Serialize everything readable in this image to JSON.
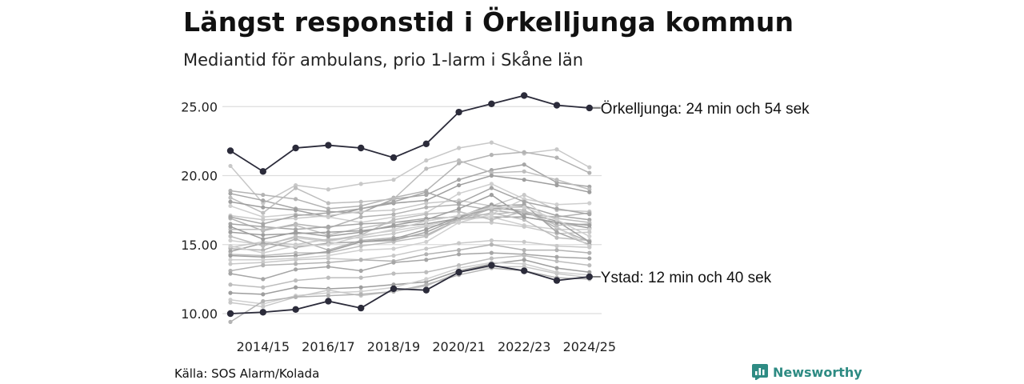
{
  "title": "Längst responstid i Örkelljunga kommun",
  "subtitle": "Mediantid för ambulans, prio 1-larm i Skåne län",
  "source": "Källa: SOS Alarm/Kolada",
  "brand": "Newsworthy",
  "chart_data": {
    "type": "line",
    "title": "Längst responstid i Örkelljunga kommun",
    "subtitle": "Mediantid för ambulans, prio 1-larm i Skåne län",
    "xlabel": "",
    "ylabel": "",
    "x": [
      "2013/14",
      "2014/15",
      "2015/16",
      "2016/17",
      "2017/18",
      "2018/19",
      "2019/20",
      "2020/21",
      "2021/22",
      "2022/23",
      "2023/24",
      "2024/25"
    ],
    "x_tick_labels": [
      "2014/15",
      "2016/17",
      "2018/19",
      "2020/21",
      "2022/23",
      "2024/25"
    ],
    "y_tick_labels": [
      "10.00",
      "15.00",
      "20.00",
      "25.00"
    ],
    "ylim": [
      9.5,
      26.2
    ],
    "grid": true,
    "highlight_color": "#2b2b3a",
    "background_series": [
      {
        "values": [
          20.7,
          18.0,
          19.3,
          19.0,
          19.4,
          19.7,
          21.1,
          22.0,
          22.4,
          21.6,
          21.9,
          20.6
        ]
      },
      {
        "values": [
          18.9,
          18.6,
          18.3,
          17.6,
          17.8,
          18.4,
          18.9,
          20.9,
          21.5,
          21.7,
          21.3,
          20.2
        ]
      },
      {
        "values": [
          18.7,
          18.2,
          17.6,
          17.4,
          17.3,
          18.3,
          18.6,
          19.7,
          20.4,
          20.8,
          19.5,
          19.2
        ]
      },
      {
        "values": [
          18.4,
          17.3,
          19.1,
          18.0,
          18.1,
          18.3,
          20.5,
          21.1,
          20.2,
          20.3,
          19.7,
          19.0
        ]
      },
      {
        "values": [
          18.1,
          17.7,
          17.5,
          17.0,
          17.6,
          18.0,
          18.2,
          19.3,
          20.0,
          19.7,
          19.3,
          18.8
        ]
      },
      {
        "values": [
          17.8,
          17.0,
          17.2,
          17.0,
          16.6,
          17.0,
          17.3,
          18.7,
          19.4,
          18.3,
          17.9,
          18.0
        ]
      },
      {
        "values": [
          17.1,
          16.8,
          16.9,
          17.1,
          17.4,
          17.5,
          18.0,
          18.2,
          17.8,
          18.6,
          17.5,
          17.4
        ]
      },
      {
        "values": [
          16.9,
          16.0,
          16.5,
          16.2,
          17.0,
          17.2,
          17.7,
          17.9,
          17.5,
          17.2,
          17.0,
          17.3
        ]
      },
      {
        "values": [
          16.5,
          16.3,
          16.1,
          16.3,
          16.5,
          16.6,
          16.9,
          17.0,
          17.6,
          17.8,
          17.1,
          16.8
        ]
      },
      {
        "values": [
          16.1,
          16.1,
          16.4,
          15.7,
          16.2,
          16.6,
          16.7,
          17.1,
          17.2,
          17.4,
          16.9,
          16.6
        ]
      },
      {
        "values": [
          15.9,
          15.7,
          15.8,
          15.9,
          16.0,
          16.3,
          16.5,
          16.9,
          17.0,
          17.0,
          16.6,
          16.2
        ]
      },
      {
        "values": [
          15.3,
          15.0,
          15.5,
          15.2,
          15.7,
          16.0,
          16.4,
          16.8,
          17.0,
          16.4,
          16.1,
          16.1
        ]
      },
      {
        "values": [
          14.8,
          15.2,
          15.0,
          15.4,
          15.5,
          15.8,
          16.3,
          16.6,
          16.6,
          16.3,
          15.8,
          15.9
        ]
      },
      {
        "values": [
          14.7,
          14.6,
          15.4,
          14.6,
          15.3,
          15.5,
          15.7,
          16.8,
          17.6,
          17.5,
          16.2,
          15.2
        ]
      },
      {
        "values": [
          14.5,
          15.1,
          14.8,
          15.1,
          15.2,
          15.3,
          15.9,
          16.9,
          17.8,
          17.9,
          15.9,
          15.0
        ]
      },
      {
        "values": [
          14.3,
          14.2,
          14.4,
          14.4,
          14.9,
          15.2,
          15.6,
          16.8,
          17.3,
          16.8,
          15.5,
          15.3
        ]
      },
      {
        "values": [
          14.2,
          14.1,
          14.2,
          14.5,
          15.2,
          15.4,
          16.1,
          17.0,
          17.9,
          17.3,
          16.7,
          15.2
        ]
      },
      {
        "values": [
          13.9,
          13.9,
          14.0,
          14.2,
          14.6,
          14.7,
          15.2,
          16.6,
          17.2,
          18.3,
          16.3,
          14.9
        ]
      },
      {
        "values": [
          13.6,
          13.7,
          13.9,
          14.0,
          13.9,
          14.2,
          14.7,
          15.1,
          15.3,
          15.2,
          14.9,
          14.8
        ]
      },
      {
        "values": [
          13.1,
          13.5,
          13.6,
          13.7,
          13.9,
          13.8,
          14.3,
          14.6,
          15.0,
          14.6,
          14.6,
          14.4
        ]
      },
      {
        "values": [
          12.9,
          12.5,
          13.2,
          13.4,
          13.1,
          13.7,
          13.9,
          14.3,
          14.4,
          14.3,
          14.1,
          14.0
        ]
      },
      {
        "values": [
          12.1,
          11.9,
          12.4,
          12.6,
          12.6,
          12.9,
          13.0,
          13.5,
          14.0,
          14.2,
          13.8,
          13.5
        ]
      },
      {
        "values": [
          11.5,
          11.4,
          11.9,
          11.8,
          11.9,
          12.1,
          12.3,
          13.1,
          13.6,
          13.9,
          13.3,
          13.0
        ]
      },
      {
        "values": [
          11.0,
          10.7,
          11.3,
          11.5,
          11.6,
          11.9,
          12.5,
          13.3,
          13.7,
          13.6,
          13.0,
          12.8
        ]
      },
      {
        "values": [
          10.8,
          10.5,
          11.2,
          11.7,
          11.3,
          11.6,
          12.0,
          13.0,
          13.4,
          13.4,
          12.9,
          12.6
        ]
      },
      {
        "values": [
          9.4,
          10.9,
          11.2,
          11.3,
          11.4,
          11.6,
          12.1,
          12.8,
          13.3,
          13.1,
          12.6,
          12.5
        ]
      },
      {
        "values": [
          17.0,
          16.5,
          17.1,
          17.3,
          17.6,
          18.1,
          18.8,
          18.0,
          19.1,
          18.1,
          17.6,
          17.2
        ]
      },
      {
        "values": [
          15.6,
          14.9,
          15.6,
          15.3,
          15.7,
          16.8,
          17.2,
          17.4,
          16.8,
          17.4,
          16.4,
          16.5
        ]
      },
      {
        "values": [
          16.3,
          15.4,
          15.9,
          15.6,
          15.9,
          16.4,
          16.8,
          17.6,
          18.6,
          17.0,
          16.6,
          16.4
        ]
      },
      {
        "values": [
          14.9,
          14.4,
          14.9,
          15.0,
          15.6,
          16.1,
          16.7,
          17.1,
          17.7,
          17.7,
          16.8,
          15.6
        ]
      }
    ],
    "series": [
      {
        "name": "Örkelljunga",
        "values": [
          21.8,
          20.3,
          22.0,
          22.2,
          22.0,
          21.3,
          22.3,
          24.6,
          25.2,
          25.8,
          25.1,
          24.9
        ]
      },
      {
        "name": "Ystad",
        "values": [
          10.0,
          10.1,
          10.3,
          10.9,
          10.4,
          11.8,
          11.7,
          13.0,
          13.5,
          13.1,
          12.4,
          12.67
        ]
      }
    ],
    "annotations": [
      {
        "series": "Örkelljunga",
        "text": "Örkelljunga: 24 min och 54 sek"
      },
      {
        "series": "Ystad",
        "text": "Ystad: 12 min och 40 sek"
      }
    ]
  }
}
